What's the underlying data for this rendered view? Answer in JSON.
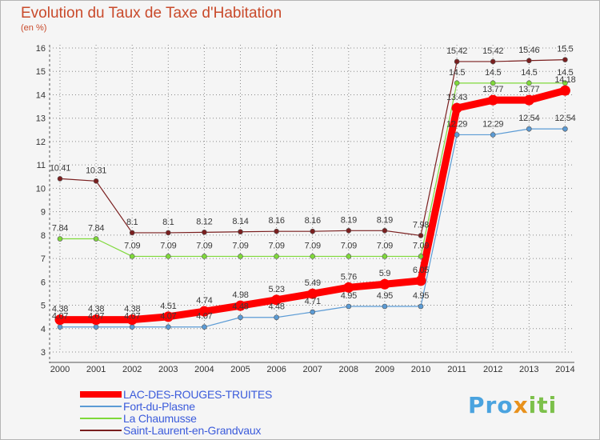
{
  "header": {
    "title": "Evolution du Taux de Taxe d'Habitation",
    "subtitle": "(en %)"
  },
  "logo": {
    "part1": "Pro",
    "part2": "x",
    "part3": "iti"
  },
  "chart_data": {
    "type": "line",
    "title": "Evolution du Taux de Taxe d'Habitation",
    "ylabel": "(en %)",
    "xlabel": "",
    "ylim": [
      3,
      16
    ],
    "yticks": [
      3,
      4,
      5,
      6,
      7,
      8,
      9,
      10,
      11,
      12,
      13,
      14,
      15,
      16
    ],
    "x": [
      "2000",
      "2001",
      "2002",
      "2003",
      "2004",
      "2005",
      "2006",
      "2007",
      "2008",
      "2009",
      "2010",
      "2011",
      "2012",
      "2013",
      "2014"
    ],
    "grid": "dotted-horizontal",
    "legend_position": "bottom-left",
    "series": [
      {
        "name": "LAC-DES-ROUGES-TRUITES",
        "color": "#ff0000",
        "values": [
          4.38,
          4.38,
          4.38,
          4.51,
          4.74,
          4.98,
          5.23,
          5.49,
          5.76,
          5.9,
          6.05,
          13.43,
          13.77,
          13.77,
          14.18
        ],
        "labels": [
          "4.38",
          "4.38",
          "4.38",
          "4.51",
          "4.74",
          "4.98",
          "5.23",
          "5.49",
          "5.76",
          "5.9",
          "6.05",
          "13.43",
          "13.77",
          "13.77",
          "14.18"
        ]
      },
      {
        "name": "Fort-du-Plasne",
        "color": "#5b9bd5",
        "values": [
          4.07,
          4.07,
          4.07,
          4.07,
          4.07,
          4.48,
          4.48,
          4.71,
          4.95,
          4.95,
          4.95,
          12.29,
          12.29,
          12.54,
          12.54
        ],
        "labels": [
          "4.07",
          "4.07",
          "4.07",
          "4.07",
          "4.07",
          "4.48",
          "4.48",
          "4.71",
          "4.95",
          "4.95",
          "4.95",
          "12.29",
          "12.29",
          "12.54",
          "12.54"
        ]
      },
      {
        "name": "La Chaumusse",
        "color": "#7fd93a",
        "values": [
          7.84,
          7.84,
          7.09,
          7.09,
          7.09,
          7.09,
          7.09,
          7.09,
          7.09,
          7.09,
          7.09,
          14.5,
          14.5,
          14.5,
          14.5
        ],
        "labels": [
          "7.84",
          "7.84",
          "7.09",
          "7.09",
          "7.09",
          "7.09",
          "7.09",
          "7.09",
          "7.09",
          "7.09",
          "7.09",
          "14.5",
          "14.5",
          "14.5",
          "14.5"
        ]
      },
      {
        "name": "Saint-Laurent-en-Grandvaux",
        "color": "#7a1f1f",
        "values": [
          10.41,
          10.31,
          8.1,
          8.1,
          8.12,
          8.14,
          8.16,
          8.16,
          8.19,
          8.19,
          7.98,
          15.42,
          15.42,
          15.46,
          15.5
        ],
        "labels": [
          "10.41",
          "10.31",
          "8.1",
          "8.1",
          "8.12",
          "8.14",
          "8.16",
          "8.16",
          "8.19",
          "8.19",
          "7.98",
          "15.42",
          "15.42",
          "15.46",
          "15.5"
        ]
      }
    ]
  }
}
